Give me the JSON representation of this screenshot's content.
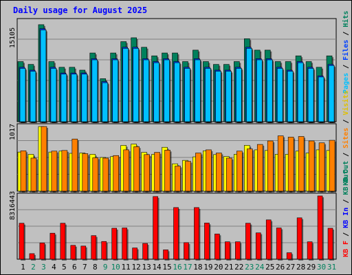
{
  "colors": {
    "page_background": "#c0c0c0",
    "plot_background": "#c0c0c0",
    "title_text": "#0000ff",
    "grid": "#808080",
    "hits": "#00805c",
    "files": "#0040ff",
    "pages": "#00c0ff",
    "visits": "#ffff00",
    "sites": "#ff8000",
    "kb_f": "#ff0000",
    "kb_in": "#0000ff",
    "kb_out": "#008040",
    "weekend_label": "#00805c",
    "weekday_label": "#000000"
  },
  "chart_data": {
    "type": "bar",
    "title": "Daily usage for August 2025",
    "categories": [
      "1",
      "2",
      "3",
      "4",
      "5",
      "6",
      "7",
      "8",
      "9",
      "10",
      "11",
      "12",
      "13",
      "14",
      "15",
      "16",
      "17",
      "18",
      "19",
      "20",
      "21",
      "22",
      "23",
      "24",
      "25",
      "26",
      "27",
      "28",
      "29",
      "30",
      "31"
    ],
    "weekend_days": [
      "2",
      "3",
      "9",
      "10",
      "16",
      "17",
      "23",
      "24",
      "30",
      "31"
    ],
    "panels": [
      {
        "name": "requests",
        "max_label": "15105",
        "ylim": [
          0,
          15105
        ],
        "series_labels": [
          "Pages",
          "Files",
          "Hits"
        ],
        "series": [
          {
            "name": "Hits",
            "values": [
              9050,
              8620,
              14600,
              9050,
              8190,
              8190,
              7760,
              10340,
              6470,
              10340,
              12050,
              12630,
              11200,
              9910,
              10340,
              10340,
              9050,
              10770,
              9050,
              8620,
              8620,
              9050,
              12490,
              10770,
              10770,
              9050,
              9050,
              9910,
              9050,
              8190,
              9910
            ]
          },
          {
            "name": "Files",
            "values": [
              8190,
              7760,
              14010,
              8190,
              7330,
              7330,
              7330,
              9480,
              6040,
              9480,
              11200,
              11200,
              9480,
              9050,
              9480,
              9050,
              8190,
              9480,
              8190,
              7760,
              7760,
              8190,
              11200,
              9480,
              9480,
              8190,
              7760,
              9050,
              8190,
              6900,
              8620
            ]
          },
          {
            "name": "Pages",
            "values": [
              8020,
              7590,
              13800,
              8020,
              7160,
              7160,
              7160,
              9310,
              5870,
              9310,
              11030,
              11030,
              9310,
              8880,
              9310,
              8880,
              8020,
              9310,
              8020,
              7590,
              7590,
              8020,
              11030,
              9310,
              9310,
              8020,
              7590,
              8880,
              8020,
              6730,
              8450
            ]
          }
        ]
      },
      {
        "name": "visitors",
        "max_label": "1017",
        "ylim": [
          0,
          1017
        ],
        "series_labels": [
          "Visits",
          "Sites",
          "KB Out"
        ],
        "series": [
          {
            "name": "Visits",
            "values": [
              615,
              580,
              1017,
              615,
              630,
              595,
              600,
              580,
              530,
              545,
              720,
              740,
              610,
              580,
              690,
              430,
              485,
              540,
              635,
              575,
              545,
              580,
              720,
              650,
              640,
              580,
              580,
              630,
              600,
              650,
              640
            ]
          },
          {
            "name": "Sites",
            "values": [
              635,
              520,
              1017,
              630,
              640,
              820,
              590,
              525,
              520,
              560,
              650,
              700,
              575,
              610,
              645,
              395,
              470,
              600,
              650,
              600,
              520,
              630,
              665,
              735,
              790,
              870,
              850,
              860,
              790,
              760,
              800
            ]
          }
        ]
      },
      {
        "name": "transfer",
        "max_label": "8316443",
        "ylim": [
          0,
          8316443
        ],
        "series_labels": [
          "KB F",
          "KB In",
          "KB Out"
        ],
        "series": [
          {
            "name": "KB F",
            "values": [
              4730,
              730,
              2140,
              3420,
              4730,
              1820,
              1730,
              3100,
              2330,
              4070,
              4110,
              1480,
              2070,
              8240,
              1230,
              6790,
              2180,
              6790,
              4760,
              3320,
              2290,
              2290,
              4730,
              3460,
              5170,
              4110,
              850,
              5440,
              2290,
              8320,
              4070
            ]
          }
        ]
      }
    ],
    "grid": true
  }
}
